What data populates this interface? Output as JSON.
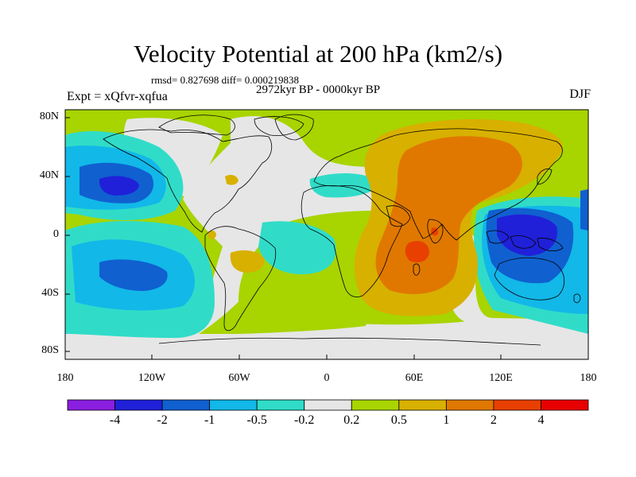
{
  "title": "Velocity Potential at 200 hPa (km2/s)",
  "stats_line": "rmsd= 0.827698 diff= 0.000219838",
  "experiment": "Expt = xQfvr-xqfua",
  "period": "2972kyr BP - 0000kyr BP",
  "season": "DJF",
  "lat_labels": [
    "80N",
    "40N",
    "0",
    "40S",
    "80S"
  ],
  "lon_labels": [
    "180",
    "120W",
    "60W",
    "0",
    "60E",
    "120E",
    "180"
  ],
  "colorbar": {
    "labels": [
      "-4",
      "-2",
      "-1",
      "-0.5",
      "-0.2",
      "0.2",
      "0.5",
      "1",
      "2",
      "4"
    ],
    "colors": [
      "#8a1fe0",
      "#2020d8",
      "#1060d0",
      "#12b8e8",
      "#30dcc8",
      "#e6e6e6",
      "#a8d400",
      "#d8b000",
      "#e07800",
      "#e84000",
      "#e80000"
    ]
  }
}
